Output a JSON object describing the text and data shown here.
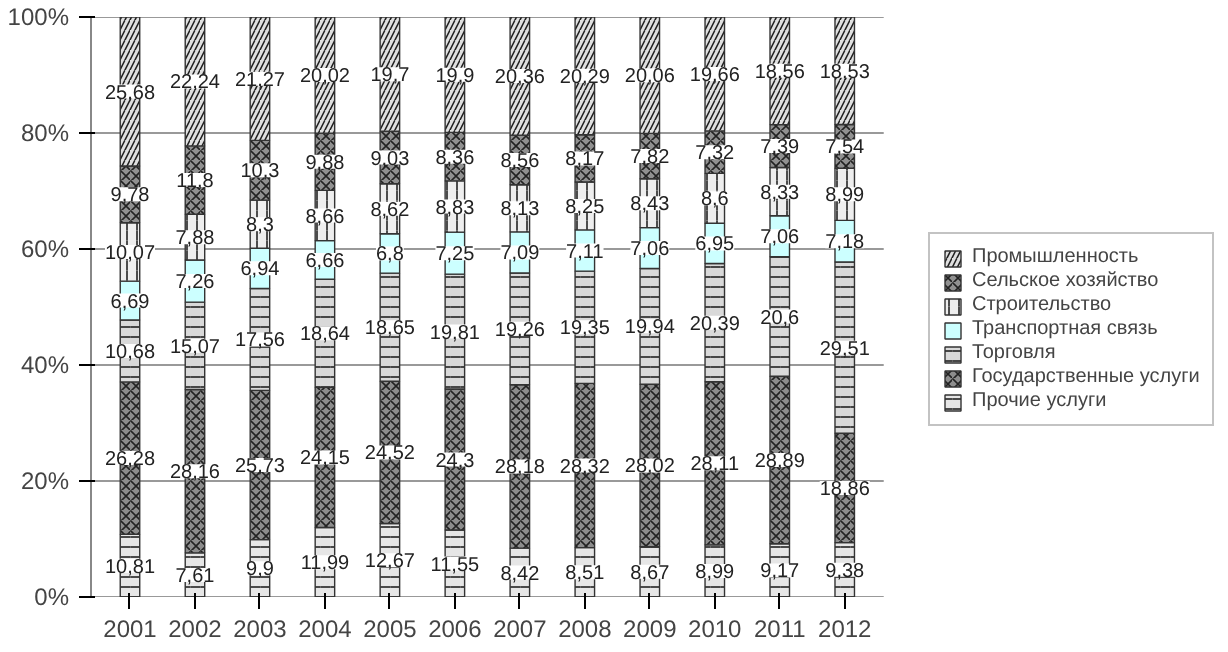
{
  "chart_data": {
    "type": "bar",
    "stacked": true,
    "categories": [
      "2001",
      "2002",
      "2003",
      "2004",
      "2005",
      "2006",
      "2007",
      "2008",
      "2009",
      "2010",
      "2011",
      "2012"
    ],
    "ylim": [
      0,
      100
    ],
    "yticks": [
      {
        "value": 0,
        "label": "0%"
      },
      {
        "value": 20,
        "label": "20%"
      },
      {
        "value": 40,
        "label": "40%"
      },
      {
        "value": 60,
        "label": "60%"
      },
      {
        "value": 80,
        "label": "80%"
      },
      {
        "value": 100,
        "label": "100%"
      }
    ],
    "grid": "y",
    "legend": "right",
    "series": [
      {
        "name": "Прочие услуги",
        "color": "#e6e6e6",
        "values": [
          10.81,
          7.61,
          9.9,
          11.99,
          12.67,
          11.55,
          8.42,
          8.51,
          8.67,
          8.99,
          9.17,
          9.38
        ],
        "value_labels": [
          "10,81",
          "7,61",
          "9,9",
          "11,99",
          "12,67",
          "11,55",
          "8,42",
          "8,51",
          "8,67",
          "8,99",
          "9,17",
          "9,38"
        ]
      },
      {
        "name": "Государственные услуги",
        "color": "#8c8c8c",
        "values": [
          26.28,
          28.16,
          25.73,
          24.15,
          24.52,
          24.3,
          28.18,
          28.32,
          28.02,
          28.11,
          28.89,
          18.86
        ],
        "value_labels": [
          "26,28",
          "28,16",
          "25,73",
          "24,15",
          "24,52",
          "24,3",
          "28,18",
          "28,32",
          "28,02",
          "28,11",
          "28,89",
          "18,86"
        ]
      },
      {
        "name": "Торговля",
        "color": "#d9d9d9",
        "values": [
          10.68,
          15.07,
          17.56,
          18.64,
          18.65,
          19.81,
          19.26,
          19.35,
          19.94,
          20.39,
          20.6,
          29.51
        ],
        "value_labels": [
          "10,68",
          "15,07",
          "17,56",
          "18,64",
          "18,65",
          "19,81",
          "19,26",
          "19,35",
          "19,94",
          "20,39",
          "20,6",
          "29,51"
        ]
      },
      {
        "name": "Транспортная связь",
        "color": "#ccffff",
        "values": [
          6.69,
          7.26,
          6.94,
          6.66,
          6.8,
          7.25,
          7.09,
          7.11,
          7.06,
          6.95,
          7.06,
          7.18
        ],
        "value_labels": [
          "6,69",
          "7,26",
          "6,94",
          "6,66",
          "6,8",
          "7,25",
          "7,09",
          "7,11",
          "7,06",
          "6,95",
          "7,06",
          "7,18"
        ]
      },
      {
        "name": "Строительство",
        "color": "#eeeeee",
        "values": [
          10.07,
          7.88,
          8.3,
          8.66,
          8.62,
          8.83,
          8.13,
          8.25,
          8.43,
          8.6,
          8.33,
          8.99
        ],
        "value_labels": [
          "10,07",
          "7,88",
          "8,3",
          "8,66",
          "8,62",
          "8,83",
          "8,13",
          "8,25",
          "8,43",
          "8,6",
          "8,33",
          "8,99"
        ]
      },
      {
        "name": "Сельское хозяйство",
        "color": "#909090",
        "values": [
          9.78,
          11.8,
          10.3,
          9.88,
          9.03,
          8.36,
          8.56,
          8.17,
          7.82,
          7.32,
          7.39,
          7.54
        ],
        "value_labels": [
          "9,78",
          "11,8",
          "10,3",
          "9,88",
          "9,03",
          "8,36",
          "8,56",
          "8,17",
          "7,82",
          "7,32",
          "7,39",
          "7,54"
        ]
      },
      {
        "name": "Промышленность",
        "color": "#e0e0e0",
        "values": [
          25.68,
          22.24,
          21.27,
          20.02,
          19.7,
          19.9,
          20.36,
          20.29,
          20.06,
          19.66,
          18.56,
          18.53
        ],
        "value_labels": [
          "25,68",
          "22,24",
          "21,27",
          "20,02",
          "19,7",
          "19,9",
          "20,36",
          "20,29",
          "20,06",
          "19,66",
          "18,56",
          "18,53"
        ]
      }
    ]
  }
}
